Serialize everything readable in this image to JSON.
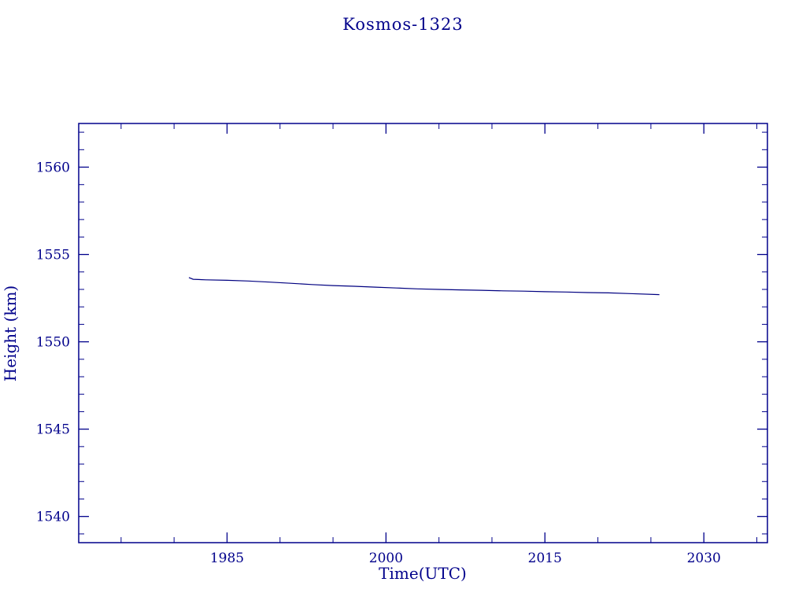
{
  "page": {
    "background": "#ffffff"
  },
  "chart_data": {
    "type": "line",
    "title": "Kosmos-1323",
    "xlabel": "Time(UTC)",
    "ylabel": "Height (km)",
    "axis_color": "#00008b",
    "line_color": "#000080",
    "grid": false,
    "legend": "none",
    "xlim": [
      1971,
      2036
    ],
    "ylim": [
      1538.5,
      1562.5
    ],
    "x_ticks": [
      1985,
      2000,
      2015,
      2030
    ],
    "x_minor_step": 5,
    "y_ticks": [
      1540,
      1545,
      1550,
      1555,
      1560
    ],
    "y_minor_step": 1,
    "series": [
      {
        "name": "height-km",
        "x": [
          1981.4,
          1981.8,
          1983,
          1985,
          1987,
          1989,
          1991,
          1993,
          1995,
          1997,
          1999,
          2001,
          2003,
          2005,
          2007,
          2009,
          2011,
          2013,
          2015,
          2017,
          2019,
          2021,
          2023,
          2025.8
        ],
        "y": [
          1553.68,
          1553.58,
          1553.55,
          1553.52,
          1553.48,
          1553.42,
          1553.35,
          1553.28,
          1553.22,
          1553.18,
          1553.13,
          1553.08,
          1553.03,
          1553.0,
          1552.97,
          1552.95,
          1552.92,
          1552.9,
          1552.87,
          1552.85,
          1552.82,
          1552.8,
          1552.76,
          1552.7
        ]
      }
    ]
  }
}
